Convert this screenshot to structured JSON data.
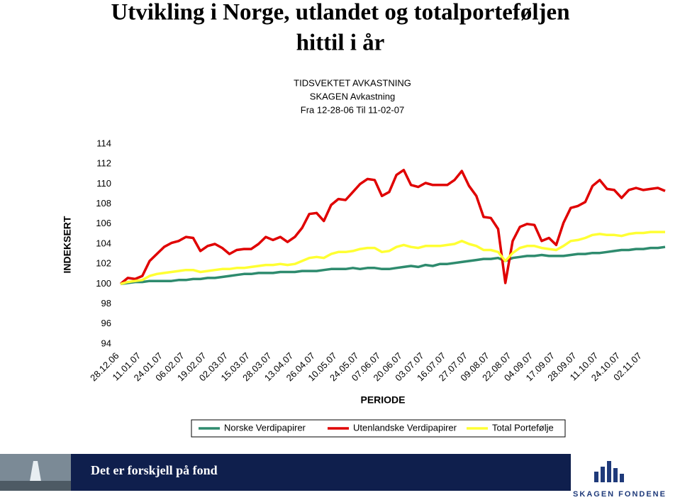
{
  "slide": {
    "title": [
      "Utvikling i Norge, utlandet og totalporteføljen",
      "hittil i år"
    ],
    "footer_text": "Det er forskjell på fond",
    "logo_text": "SKAGEN FONDENE"
  },
  "chart_data": {
    "type": "line",
    "title": [
      "TIDSVEKTET AVKASTNING",
      "SKAGEN Avkastning",
      "Fra 12-28-06 Til 11-02-07"
    ],
    "y_label": "INDEKSERT",
    "x_label": "PERIODE",
    "categories": [
      "28.12.06",
      null,
      null,
      "11.01.07",
      null,
      null,
      "24.01.07",
      null,
      null,
      "06.02.07",
      null,
      null,
      "19.02.07",
      null,
      null,
      "02.03.07",
      null,
      null,
      "15.03.07",
      null,
      null,
      "28.03.07",
      null,
      null,
      "13.04.07",
      null,
      null,
      "26.04.07",
      null,
      null,
      "10.05.07",
      null,
      null,
      "24.05.07",
      null,
      null,
      "07.06.07",
      null,
      null,
      "20.06.07",
      null,
      null,
      "03.07.07",
      null,
      null,
      "16.07.07",
      null,
      null,
      "27.07.07",
      null,
      null,
      "09.08.07",
      null,
      null,
      "22.08.07",
      null,
      null,
      "04.09.07",
      null,
      null,
      "17.09.07",
      null,
      null,
      "28.09.07",
      null,
      null,
      "11.10.07",
      null,
      null,
      "24.10.07",
      null,
      null,
      "02.11.07",
      null,
      null,
      null
    ],
    "ylim": [
      94,
      114
    ],
    "yticks": [
      94,
      96,
      98,
      100,
      102,
      104,
      106,
      108,
      110,
      112,
      114
    ],
    "grid": false,
    "series": [
      {
        "name": "Norske Verdipapirer",
        "color": "#2e8b6e",
        "values": [
          100.0,
          100.1,
          100.2,
          100.2,
          100.3,
          100.3,
          100.3,
          100.3,
          100.4,
          100.4,
          100.5,
          100.5,
          100.6,
          100.6,
          100.7,
          100.8,
          100.9,
          101.0,
          101.0,
          101.1,
          101.1,
          101.1,
          101.2,
          101.2,
          101.2,
          101.3,
          101.3,
          101.3,
          101.4,
          101.5,
          101.5,
          101.5,
          101.6,
          101.5,
          101.6,
          101.6,
          101.5,
          101.5,
          101.6,
          101.7,
          101.8,
          101.7,
          101.9,
          101.8,
          102.0,
          102.0,
          102.1,
          102.2,
          102.3,
          102.4,
          102.5,
          102.5,
          102.6,
          102.3,
          102.6,
          102.7,
          102.8,
          102.8,
          102.9,
          102.8,
          102.8,
          102.8,
          102.9,
          103.0,
          103.0,
          103.1,
          103.1,
          103.2,
          103.3,
          103.4,
          103.4,
          103.5,
          103.5,
          103.6,
          103.6,
          103.7
        ]
      },
      {
        "name": "Utenlandske Verdipapirer",
        "color": "#e00000",
        "values": [
          100.0,
          100.6,
          100.5,
          100.8,
          102.3,
          103.0,
          103.7,
          104.1,
          104.3,
          104.7,
          104.6,
          103.3,
          103.8,
          104.0,
          103.6,
          103.0,
          103.4,
          103.5,
          103.5,
          104.0,
          104.7,
          104.4,
          104.7,
          104.2,
          104.7,
          105.6,
          107.0,
          107.1,
          106.3,
          107.9,
          108.5,
          108.4,
          109.2,
          110.0,
          110.5,
          110.4,
          108.8,
          109.2,
          110.9,
          111.4,
          109.9,
          109.7,
          110.1,
          109.9,
          109.9,
          109.9,
          110.4,
          111.3,
          109.8,
          108.8,
          106.7,
          106.6,
          105.5,
          100.1,
          104.3,
          105.7,
          106.0,
          105.9,
          104.3,
          104.6,
          103.9,
          106.1,
          107.6,
          107.8,
          108.2,
          109.8,
          110.4,
          109.5,
          109.4,
          108.6,
          109.4,
          109.6,
          109.4,
          109.5,
          109.6,
          109.3
        ]
      },
      {
        "name": "Total Portefølje",
        "color": "#ffff33",
        "values": [
          100.0,
          100.2,
          100.3,
          100.4,
          100.8,
          101.0,
          101.1,
          101.2,
          101.3,
          101.4,
          101.4,
          101.2,
          101.3,
          101.4,
          101.5,
          101.5,
          101.6,
          101.6,
          101.7,
          101.8,
          101.9,
          101.9,
          102.0,
          101.9,
          102.0,
          102.3,
          102.6,
          102.7,
          102.6,
          103.0,
          103.2,
          103.2,
          103.3,
          103.5,
          103.6,
          103.6,
          103.2,
          103.3,
          103.7,
          103.9,
          103.7,
          103.6,
          103.8,
          103.8,
          103.8,
          103.9,
          104.0,
          104.3,
          104.0,
          103.8,
          103.4,
          103.4,
          103.2,
          102.3,
          103.1,
          103.6,
          103.8,
          103.8,
          103.6,
          103.5,
          103.4,
          103.8,
          104.3,
          104.4,
          104.6,
          104.9,
          105.0,
          104.9,
          104.9,
          104.8,
          105.0,
          105.1,
          105.1,
          105.2,
          105.2,
          105.2
        ]
      }
    ]
  }
}
